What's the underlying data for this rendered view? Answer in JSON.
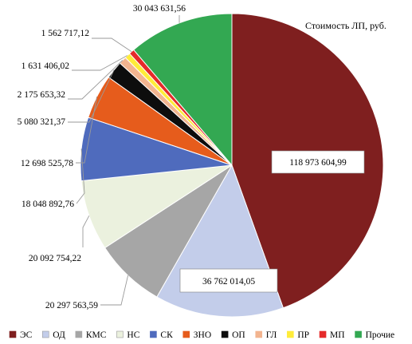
{
  "chart_data": {
    "type": "pie",
    "title": "Стоимость ЛП, руб.",
    "legend": "bottom",
    "series": [
      {
        "name": "ЭС",
        "value": 118973604.99,
        "label": "118 973 604,99",
        "color": "#7f1f1f"
      },
      {
        "name": "ОД",
        "value": 36762014.05,
        "label": "36 762 014,05",
        "color": "#c3cdea"
      },
      {
        "name": "КМС",
        "value": 20297563.59,
        "label": "20 297 563,59",
        "color": "#a6a6a6"
      },
      {
        "name": "НС",
        "value": 20092754.22,
        "label": "20 092 754,22",
        "color": "#ebf1de"
      },
      {
        "name": "СК",
        "value": 18048892.76,
        "label": "18 048 892,76",
        "color": "#4f6bbd"
      },
      {
        "name": "ЗНО",
        "value": 12698525.78,
        "label": "12 698 525,78",
        "color": "#e65c1c"
      },
      {
        "name": "ОП",
        "value": 5080321.37,
        "label": "5 080 321,37",
        "color": "#0d0d0d"
      },
      {
        "name": "ГЛ",
        "value": 2175653.32,
        "label": "2 175 653,32",
        "color": "#f2b48f"
      },
      {
        "name": "ПР",
        "value": 1631406.02,
        "label": "1 631 406,02",
        "color": "#ffec3a"
      },
      {
        "name": "МП",
        "value": 1562717.12,
        "label": "1 562 717,12",
        "color": "#e52a2a"
      },
      {
        "name": "Прочие",
        "value": 30043631.56,
        "label": "30 043 631,56",
        "color": "#33a852"
      }
    ]
  }
}
